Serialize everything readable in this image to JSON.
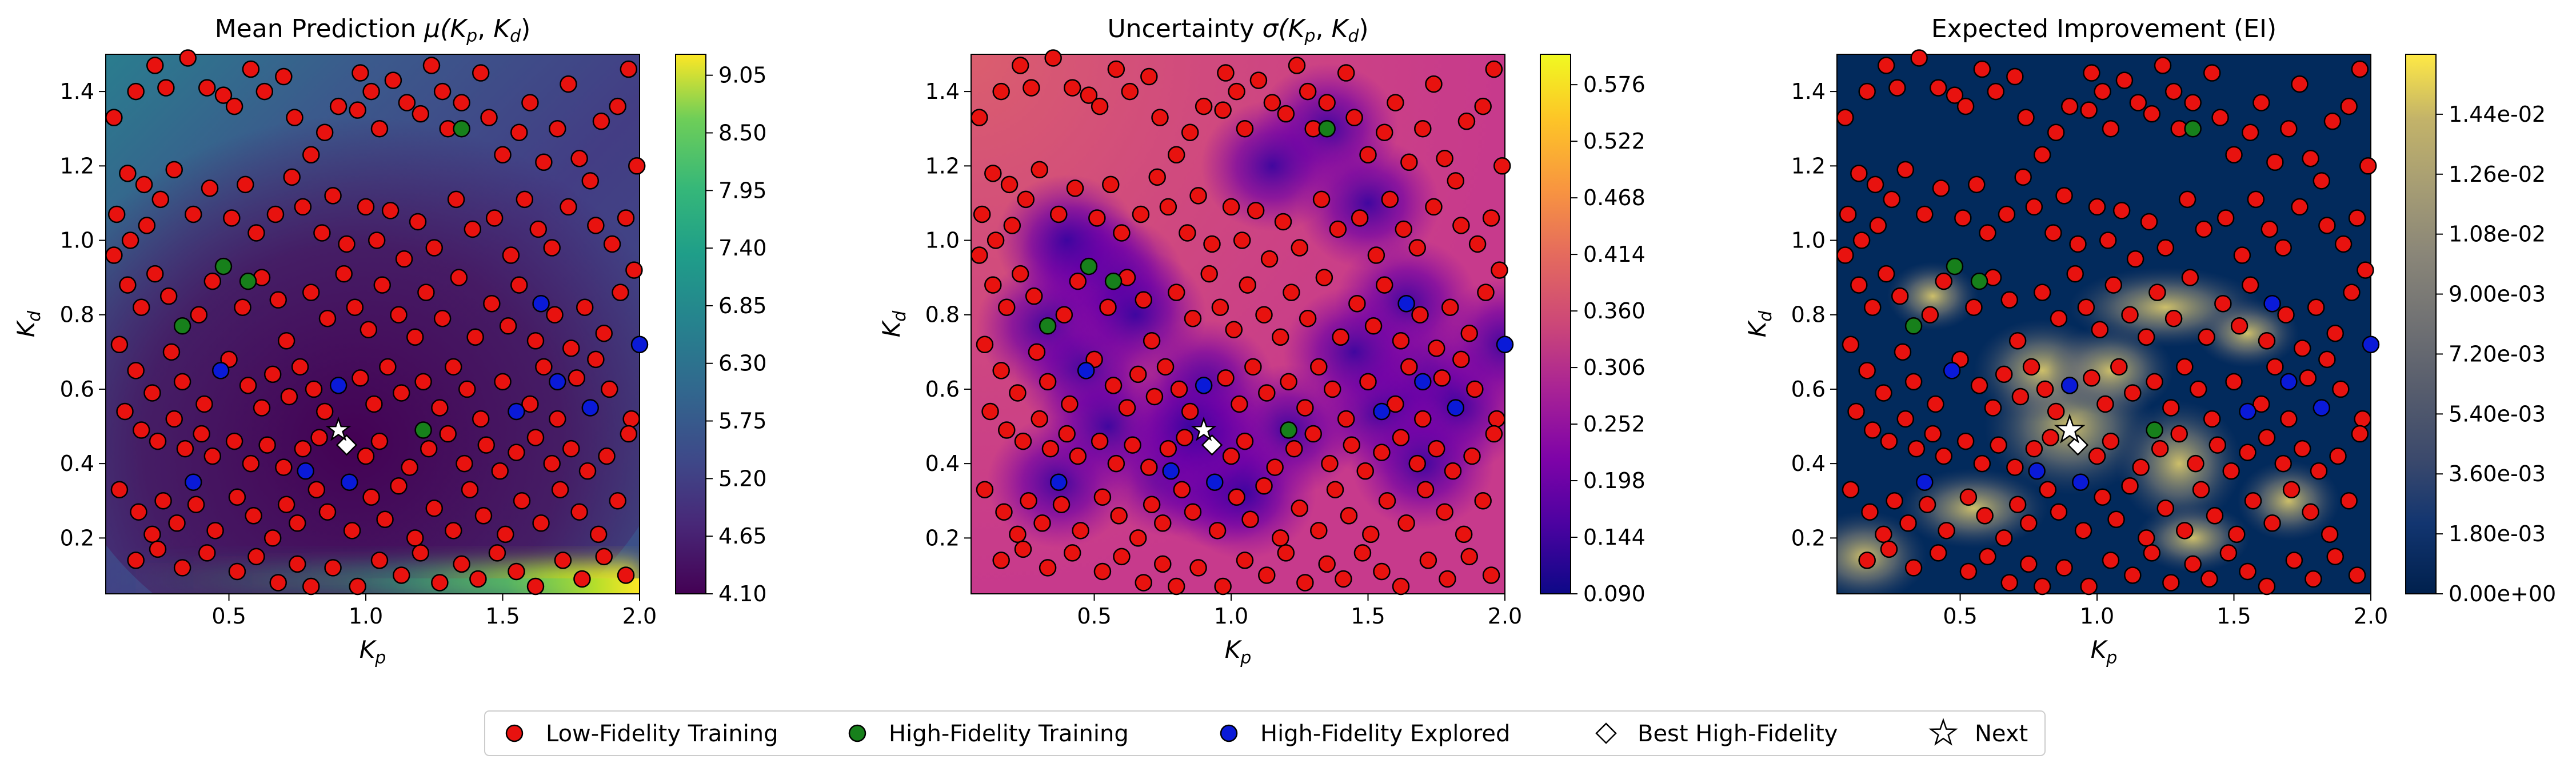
{
  "figure": {
    "panels": [
      {
        "title": "Mean Prediction μ(Kp,Kd)",
        "title_math_parts": [
          "Mean Prediction ",
          "μ(",
          "K",
          "p",
          ", ",
          "K",
          "d",
          ")"
        ],
        "colormap": "viridis",
        "colorbar": {
          "ticks": [
            "4.10",
            "4.65",
            "5.20",
            "5.75",
            "6.30",
            "6.85",
            "7.40",
            "7.95",
            "8.50",
            "9.05"
          ],
          "min": 4.1,
          "max": 9.25
        }
      },
      {
        "title": "Uncertainty σ(Kp,Kd)",
        "title_math_parts": [
          "Uncertainty ",
          "σ(",
          "K",
          "p",
          ", ",
          "K",
          "d",
          ")"
        ],
        "colormap": "plasma",
        "colorbar": {
          "ticks": [
            "0.090",
            "0.144",
            "0.198",
            "0.252",
            "0.306",
            "0.360",
            "0.414",
            "0.468",
            "0.522",
            "0.576"
          ],
          "min": 0.09,
          "max": 0.605
        }
      },
      {
        "title": "Expected Improvement (EI)",
        "colormap": "cividis",
        "colorbar": {
          "ticks": [
            "0.00e+00",
            "1.80e-03",
            "3.60e-03",
            "5.40e-03",
            "7.20e-03",
            "9.00e-03",
            "1.08e-02",
            "1.26e-02",
            "1.44e-02"
          ],
          "min": 0.0,
          "max": 0.0162
        }
      }
    ],
    "x_axis": {
      "label_main": "K",
      "label_sub": "p",
      "ticks": [
        "0.5",
        "1.0",
        "1.5",
        "2.0"
      ],
      "range": [
        0.05,
        2.0
      ]
    },
    "y_axis": {
      "label_main": "K",
      "label_sub": "d",
      "ticks": [
        "0.2",
        "0.4",
        "0.6",
        "0.8",
        "1.0",
        "1.2",
        "1.4"
      ],
      "range": [
        0.05,
        1.5
      ]
    },
    "legend": [
      {
        "label": "Low-Fidelity Training",
        "marker": "circle",
        "color": "#e8120f"
      },
      {
        "label": "High-Fidelity Training",
        "marker": "circle",
        "color": "#17801b"
      },
      {
        "label": "High-Fidelity Explored",
        "marker": "circle",
        "color": "#0a1ad8"
      },
      {
        "label": "Best High-Fidelity",
        "marker": "diamond",
        "color": "#ffffff"
      },
      {
        "label": "Next",
        "marker": "star",
        "color": "#ffffff"
      }
    ]
  },
  "chart_data": {
    "type": "scatter",
    "x_label": "Kp",
    "y_label": "Kd",
    "xlim": [
      0.05,
      2.0
    ],
    "ylim": [
      0.05,
      1.5
    ],
    "series": [
      {
        "name": "Low-Fidelity Training",
        "points": [
          [
            0.08,
            1.33
          ],
          [
            0.13,
            1.18
          ],
          [
            0.19,
            1.15
          ],
          [
            0.16,
            1.4
          ],
          [
            0.23,
            1.47
          ],
          [
            0.27,
            1.41
          ],
          [
            0.35,
            1.49
          ],
          [
            0.42,
            1.41
          ],
          [
            0.48,
            1.39
          ],
          [
            0.52,
            1.36
          ],
          [
            0.58,
            1.46
          ],
          [
            0.63,
            1.4
          ],
          [
            0.7,
            1.44
          ],
          [
            0.74,
            1.33
          ],
          [
            0.8,
            1.23
          ],
          [
            0.85,
            1.29
          ],
          [
            0.9,
            1.36
          ],
          [
            0.97,
            1.35
          ],
          [
            0.98,
            1.45
          ],
          [
            1.02,
            1.4
          ],
          [
            1.05,
            1.3
          ],
          [
            1.1,
            1.43
          ],
          [
            1.15,
            1.37
          ],
          [
            1.2,
            1.34
          ],
          [
            1.24,
            1.47
          ],
          [
            1.28,
            1.4
          ],
          [
            1.3,
            1.3
          ],
          [
            1.35,
            1.37
          ],
          [
            1.42,
            1.45
          ],
          [
            1.45,
            1.33
          ],
          [
            1.5,
            1.23
          ],
          [
            1.56,
            1.29
          ],
          [
            1.6,
            1.37
          ],
          [
            1.65,
            1.21
          ],
          [
            1.7,
            1.3
          ],
          [
            1.74,
            1.42
          ],
          [
            1.78,
            1.22
          ],
          [
            1.82,
            1.16
          ],
          [
            1.86,
            1.32
          ],
          [
            1.92,
            1.36
          ],
          [
            1.96,
            1.46
          ],
          [
            1.99,
            1.2
          ],
          [
            0.09,
            1.07
          ],
          [
            0.14,
            1.0
          ],
          [
            0.2,
            1.04
          ],
          [
            0.25,
            1.11
          ],
          [
            0.3,
            1.19
          ],
          [
            0.37,
            1.07
          ],
          [
            0.43,
            1.14
          ],
          [
            0.51,
            1.06
          ],
          [
            0.56,
            1.15
          ],
          [
            0.6,
            1.02
          ],
          [
            0.67,
            1.07
          ],
          [
            0.73,
            1.17
          ],
          [
            0.77,
            1.09
          ],
          [
            0.84,
            1.02
          ],
          [
            0.88,
            1.12
          ],
          [
            0.93,
            0.99
          ],
          [
            1.0,
            1.09
          ],
          [
            1.04,
            1.0
          ],
          [
            1.09,
            1.08
          ],
          [
            1.14,
            0.95
          ],
          [
            1.19,
            1.05
          ],
          [
            1.25,
            0.98
          ],
          [
            1.33,
            1.11
          ],
          [
            1.39,
            1.03
          ],
          [
            1.47,
            1.06
          ],
          [
            1.53,
            0.96
          ],
          [
            1.58,
            1.11
          ],
          [
            1.63,
            1.03
          ],
          [
            1.68,
            0.98
          ],
          [
            1.74,
            1.09
          ],
          [
            1.84,
            1.04
          ],
          [
            1.9,
            0.99
          ],
          [
            1.95,
            1.06
          ],
          [
            1.98,
            0.92
          ],
          [
            0.08,
            0.96
          ],
          [
            0.13,
            0.88
          ],
          [
            0.18,
            0.82
          ],
          [
            0.23,
            0.91
          ],
          [
            0.28,
            0.85
          ],
          [
            0.39,
            0.8
          ],
          [
            0.44,
            0.89
          ],
          [
            0.55,
            0.82
          ],
          [
            0.62,
            0.9
          ],
          [
            0.68,
            0.84
          ],
          [
            0.71,
            0.73
          ],
          [
            0.8,
            0.86
          ],
          [
            0.86,
            0.79
          ],
          [
            0.92,
            0.91
          ],
          [
            0.96,
            0.82
          ],
          [
            1.01,
            0.76
          ],
          [
            1.06,
            0.88
          ],
          [
            1.12,
            0.8
          ],
          [
            1.18,
            0.74
          ],
          [
            1.22,
            0.86
          ],
          [
            1.28,
            0.79
          ],
          [
            1.34,
            0.9
          ],
          [
            1.4,
            0.74
          ],
          [
            1.46,
            0.83
          ],
          [
            1.52,
            0.77
          ],
          [
            1.56,
            0.88
          ],
          [
            1.62,
            0.73
          ],
          [
            1.69,
            0.8
          ],
          [
            1.75,
            0.71
          ],
          [
            1.8,
            0.82
          ],
          [
            1.87,
            0.75
          ],
          [
            1.93,
            0.86
          ],
          [
            0.1,
            0.72
          ],
          [
            0.16,
            0.65
          ],
          [
            0.22,
            0.59
          ],
          [
            0.29,
            0.7
          ],
          [
            0.33,
            0.62
          ],
          [
            0.41,
            0.56
          ],
          [
            0.5,
            0.68
          ],
          [
            0.57,
            0.61
          ],
          [
            0.62,
            0.55
          ],
          [
            0.66,
            0.64
          ],
          [
            0.72,
            0.58
          ],
          [
            0.76,
            0.66
          ],
          [
            0.81,
            0.6
          ],
          [
            0.85,
            0.54
          ],
          [
            0.98,
            0.63
          ],
          [
            1.03,
            0.56
          ],
          [
            1.08,
            0.66
          ],
          [
            1.13,
            0.59
          ],
          [
            1.21,
            0.62
          ],
          [
            1.27,
            0.55
          ],
          [
            1.32,
            0.66
          ],
          [
            1.37,
            0.6
          ],
          [
            1.42,
            0.52
          ],
          [
            1.5,
            0.62
          ],
          [
            1.6,
            0.56
          ],
          [
            1.65,
            0.66
          ],
          [
            1.7,
            0.52
          ],
          [
            1.77,
            0.63
          ],
          [
            1.84,
            0.68
          ],
          [
            1.89,
            0.6
          ],
          [
            1.97,
            0.52
          ],
          [
            0.12,
            0.54
          ],
          [
            0.18,
            0.49
          ],
          [
            0.24,
            0.46
          ],
          [
            0.3,
            0.52
          ],
          [
            0.34,
            0.44
          ],
          [
            0.4,
            0.48
          ],
          [
            0.44,
            0.42
          ],
          [
            0.52,
            0.46
          ],
          [
            0.58,
            0.4
          ],
          [
            0.64,
            0.45
          ],
          [
            0.7,
            0.39
          ],
          [
            0.77,
            0.44
          ],
          [
            0.83,
            0.47
          ],
          [
            1.0,
            0.42
          ],
          [
            1.05,
            0.46
          ],
          [
            1.16,
            0.39
          ],
          [
            1.23,
            0.44
          ],
          [
            1.3,
            0.48
          ],
          [
            1.36,
            0.4
          ],
          [
            1.44,
            0.45
          ],
          [
            1.49,
            0.38
          ],
          [
            1.55,
            0.43
          ],
          [
            1.62,
            0.47
          ],
          [
            1.68,
            0.4
          ],
          [
            1.75,
            0.44
          ],
          [
            1.81,
            0.38
          ],
          [
            1.88,
            0.42
          ],
          [
            1.96,
            0.48
          ],
          [
            0.1,
            0.33
          ],
          [
            0.17,
            0.27
          ],
          [
            0.22,
            0.21
          ],
          [
            0.26,
            0.3
          ],
          [
            0.31,
            0.24
          ],
          [
            0.38,
            0.29
          ],
          [
            0.45,
            0.22
          ],
          [
            0.53,
            0.31
          ],
          [
            0.59,
            0.26
          ],
          [
            0.66,
            0.2
          ],
          [
            0.71,
            0.29
          ],
          [
            0.75,
            0.24
          ],
          [
            0.82,
            0.33
          ],
          [
            0.86,
            0.27
          ],
          [
            0.95,
            0.22
          ],
          [
            1.02,
            0.31
          ],
          [
            1.07,
            0.25
          ],
          [
            1.12,
            0.34
          ],
          [
            1.18,
            0.2
          ],
          [
            1.25,
            0.28
          ],
          [
            1.32,
            0.22
          ],
          [
            1.38,
            0.33
          ],
          [
            1.43,
            0.26
          ],
          [
            1.51,
            0.21
          ],
          [
            1.57,
            0.3
          ],
          [
            1.64,
            0.24
          ],
          [
            1.71,
            0.33
          ],
          [
            1.78,
            0.27
          ],
          [
            1.85,
            0.21
          ],
          [
            1.92,
            0.3
          ],
          [
            0.16,
            0.14
          ],
          [
            0.24,
            0.17
          ],
          [
            0.33,
            0.12
          ],
          [
            0.42,
            0.16
          ],
          [
            0.53,
            0.11
          ],
          [
            0.6,
            0.15
          ],
          [
            0.68,
            0.08
          ],
          [
            0.75,
            0.13
          ],
          [
            0.8,
            0.07
          ],
          [
            0.88,
            0.12
          ],
          [
            0.97,
            0.07
          ],
          [
            1.05,
            0.14
          ],
          [
            1.13,
            0.1
          ],
          [
            1.2,
            0.16
          ],
          [
            1.27,
            0.08
          ],
          [
            1.35,
            0.13
          ],
          [
            1.41,
            0.09
          ],
          [
            1.48,
            0.16
          ],
          [
            1.55,
            0.11
          ],
          [
            1.62,
            0.07
          ],
          [
            1.72,
            0.14
          ],
          [
            1.79,
            0.09
          ],
          [
            1.87,
            0.15
          ],
          [
            1.95,
            0.1
          ]
        ]
      },
      {
        "name": "High-Fidelity Training",
        "points": [
          [
            1.35,
            1.3
          ],
          [
            0.48,
            0.93
          ],
          [
            0.57,
            0.89
          ],
          [
            0.33,
            0.77
          ],
          [
            1.21,
            0.49
          ]
        ]
      },
      {
        "name": "High-Fidelity Explored",
        "points": [
          [
            1.64,
            0.83
          ],
          [
            0.47,
            0.65
          ],
          [
            0.9,
            0.61
          ],
          [
            1.7,
            0.62
          ],
          [
            1.82,
            0.55
          ],
          [
            1.55,
            0.54
          ],
          [
            0.78,
            0.38
          ],
          [
            0.37,
            0.35
          ],
          [
            0.94,
            0.35
          ],
          [
            2.0,
            0.72
          ]
        ]
      },
      {
        "name": "Best High-Fidelity",
        "points": [
          [
            0.93,
            0.45
          ]
        ]
      },
      {
        "name": "Next",
        "points": [
          [
            0.9,
            0.49
          ]
        ]
      }
    ]
  }
}
